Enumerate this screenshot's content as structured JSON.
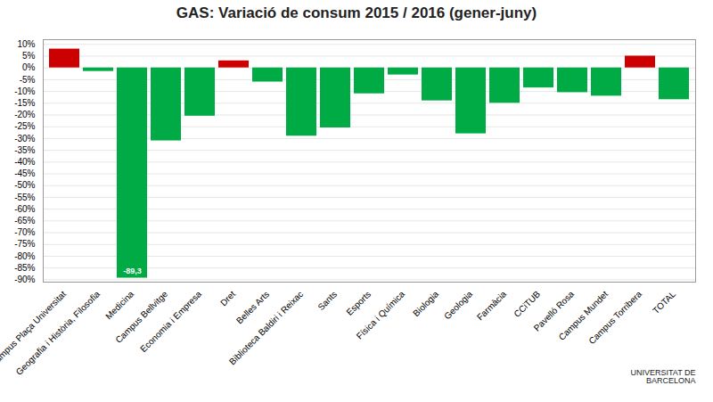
{
  "chart_data": {
    "type": "bar",
    "title": "GAS: Variació de consum 2015 / 2016 (gener-juny)",
    "categories": [
      "Campus Plaça Universitat",
      "Geografia i Història, Filosofia",
      "Medicina",
      "Campus Bellvitge",
      "Economia i Empresa",
      "Dret",
      "Belles Arts",
      "Biblioteca Baldiri i Reixac",
      "Sants",
      "Esports",
      "Física i Química",
      "Biologia",
      "Geologia",
      "Farmàcia",
      "CCiTUB",
      "Pavelló Rosa",
      "Campus Mundet",
      "Campus Torribera",
      "TOTAL"
    ],
    "values": [
      8.0,
      -1.5,
      -89.3,
      -31.0,
      -20.5,
      3.0,
      -6.0,
      -29.0,
      -25.5,
      -11.0,
      -3.0,
      -14.0,
      -28.0,
      -15.0,
      -8.5,
      -10.5,
      -12.0,
      5.0,
      -13.5
    ],
    "colors": [
      "#cc0000",
      "#00aa44",
      "#00aa44",
      "#00aa44",
      "#00aa44",
      "#cc0000",
      "#00aa44",
      "#00aa44",
      "#00aa44",
      "#00aa44",
      "#00aa44",
      "#00aa44",
      "#00aa44",
      "#00aa44",
      "#00aa44",
      "#00aa44",
      "#00aa44",
      "#cc0000",
      "#00aa44"
    ],
    "ylim": [
      -91,
      12
    ],
    "yticks": [
      {
        "value": -90,
        "label": "-90%"
      },
      {
        "value": -85,
        "label": "-85%"
      },
      {
        "value": -80,
        "label": "-80%"
      },
      {
        "value": -75,
        "label": "-75%"
      },
      {
        "value": -70,
        "label": "-70%"
      },
      {
        "value": -65,
        "label": "-65%"
      },
      {
        "value": -60,
        "label": "-60%"
      },
      {
        "value": -55,
        "label": "-55%"
      },
      {
        "value": -50,
        "label": "-50%"
      },
      {
        "value": -45,
        "label": "-45%"
      },
      {
        "value": -40,
        "label": "-40%"
      },
      {
        "value": -35,
        "label": "-35%"
      },
      {
        "value": -30,
        "label": "-30%"
      },
      {
        "value": -25,
        "label": "-25%"
      },
      {
        "value": -20,
        "label": "-20%"
      },
      {
        "value": -15,
        "label": "-15%"
      },
      {
        "value": -10,
        "label": "-10%"
      },
      {
        "value": -5,
        "label": "-5%"
      },
      {
        "value": 0,
        "label": "0%"
      },
      {
        "value": 5,
        "label": "5%"
      },
      {
        "value": 10,
        "label": "10%"
      }
    ],
    "grid": true,
    "annotations": [
      {
        "text": "-89,3",
        "category": "Medicina"
      },
      {
        "text": "UNIVERSITAT DE\nBARCELONA"
      }
    ]
  }
}
